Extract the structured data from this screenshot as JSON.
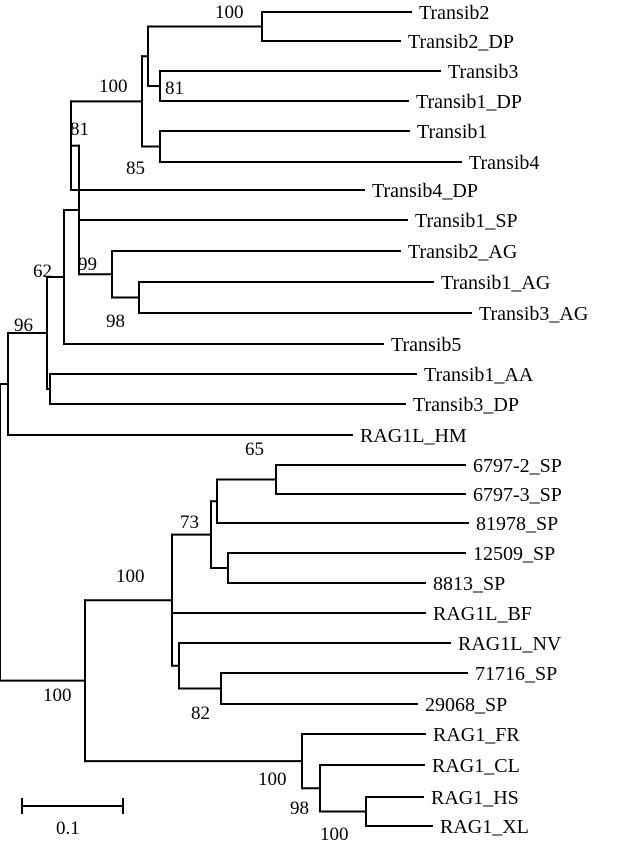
{
  "tree": {
    "leaves": [
      "Transib2",
      "Transib2_DP",
      "Transib3",
      "Transib1_DP",
      "Transib1",
      "Transib4",
      "Transib4_DP",
      "Transib1_SP",
      "Transib2_AG",
      "Transib1_AG",
      "Transib3_AG",
      "Transib5",
      "Transib1_AA",
      "Transib3_DP",
      "RAG1L_HM",
      "6797-2_SP",
      "6797-3_SP",
      "81978_SP",
      "12509_SP",
      "8813_SP",
      "RAG1L_BF",
      "RAG1L_NV",
      "71716_SP",
      "29068_SP",
      "RAG1_FR",
      "RAG1_CL",
      "RAG1_HS",
      "RAG1_XL"
    ],
    "support": [
      "100",
      "100",
      "81",
      "81",
      "85",
      "62",
      "99",
      "98",
      "96",
      "65",
      "73",
      "100",
      "82",
      "100",
      "100",
      "98",
      "100"
    ]
  },
  "scale_bar": {
    "label": "0.1"
  }
}
